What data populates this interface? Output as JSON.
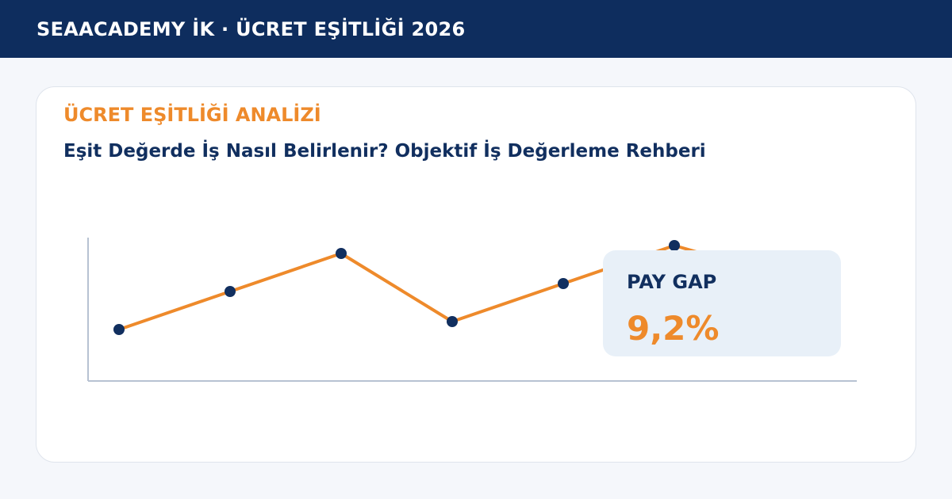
{
  "header": {
    "title": "SEAACADEMY İK · ÜCRET EŞİTLİĞİ 2026"
  },
  "card": {
    "eyebrow": "ÜCRET EŞİTLİĞİ ANALİZİ",
    "headline": "Eşit Değerde İş Nasıl Belirlenir? Objektif İş Değerleme Rehberi"
  },
  "callout": {
    "label": "PAY GAP",
    "value": "9,2%"
  },
  "colors": {
    "header_bg": "#0e2d5e",
    "accent": "#ee8a2b",
    "navy": "#112f5f",
    "callout_bg": "#e8f0f8",
    "axis": "#b7c2d2"
  },
  "chart_data": {
    "type": "line",
    "title": "",
    "xlabel": "",
    "ylabel": "",
    "x": [
      1,
      2,
      3,
      4,
      5,
      6,
      7
    ],
    "values": [
      22,
      46,
      70,
      27,
      51,
      75,
      55
    ],
    "ylim": [
      0,
      100
    ],
    "grid": false,
    "line_color": "#ee8a2b",
    "marker_color": "#112f5f"
  }
}
